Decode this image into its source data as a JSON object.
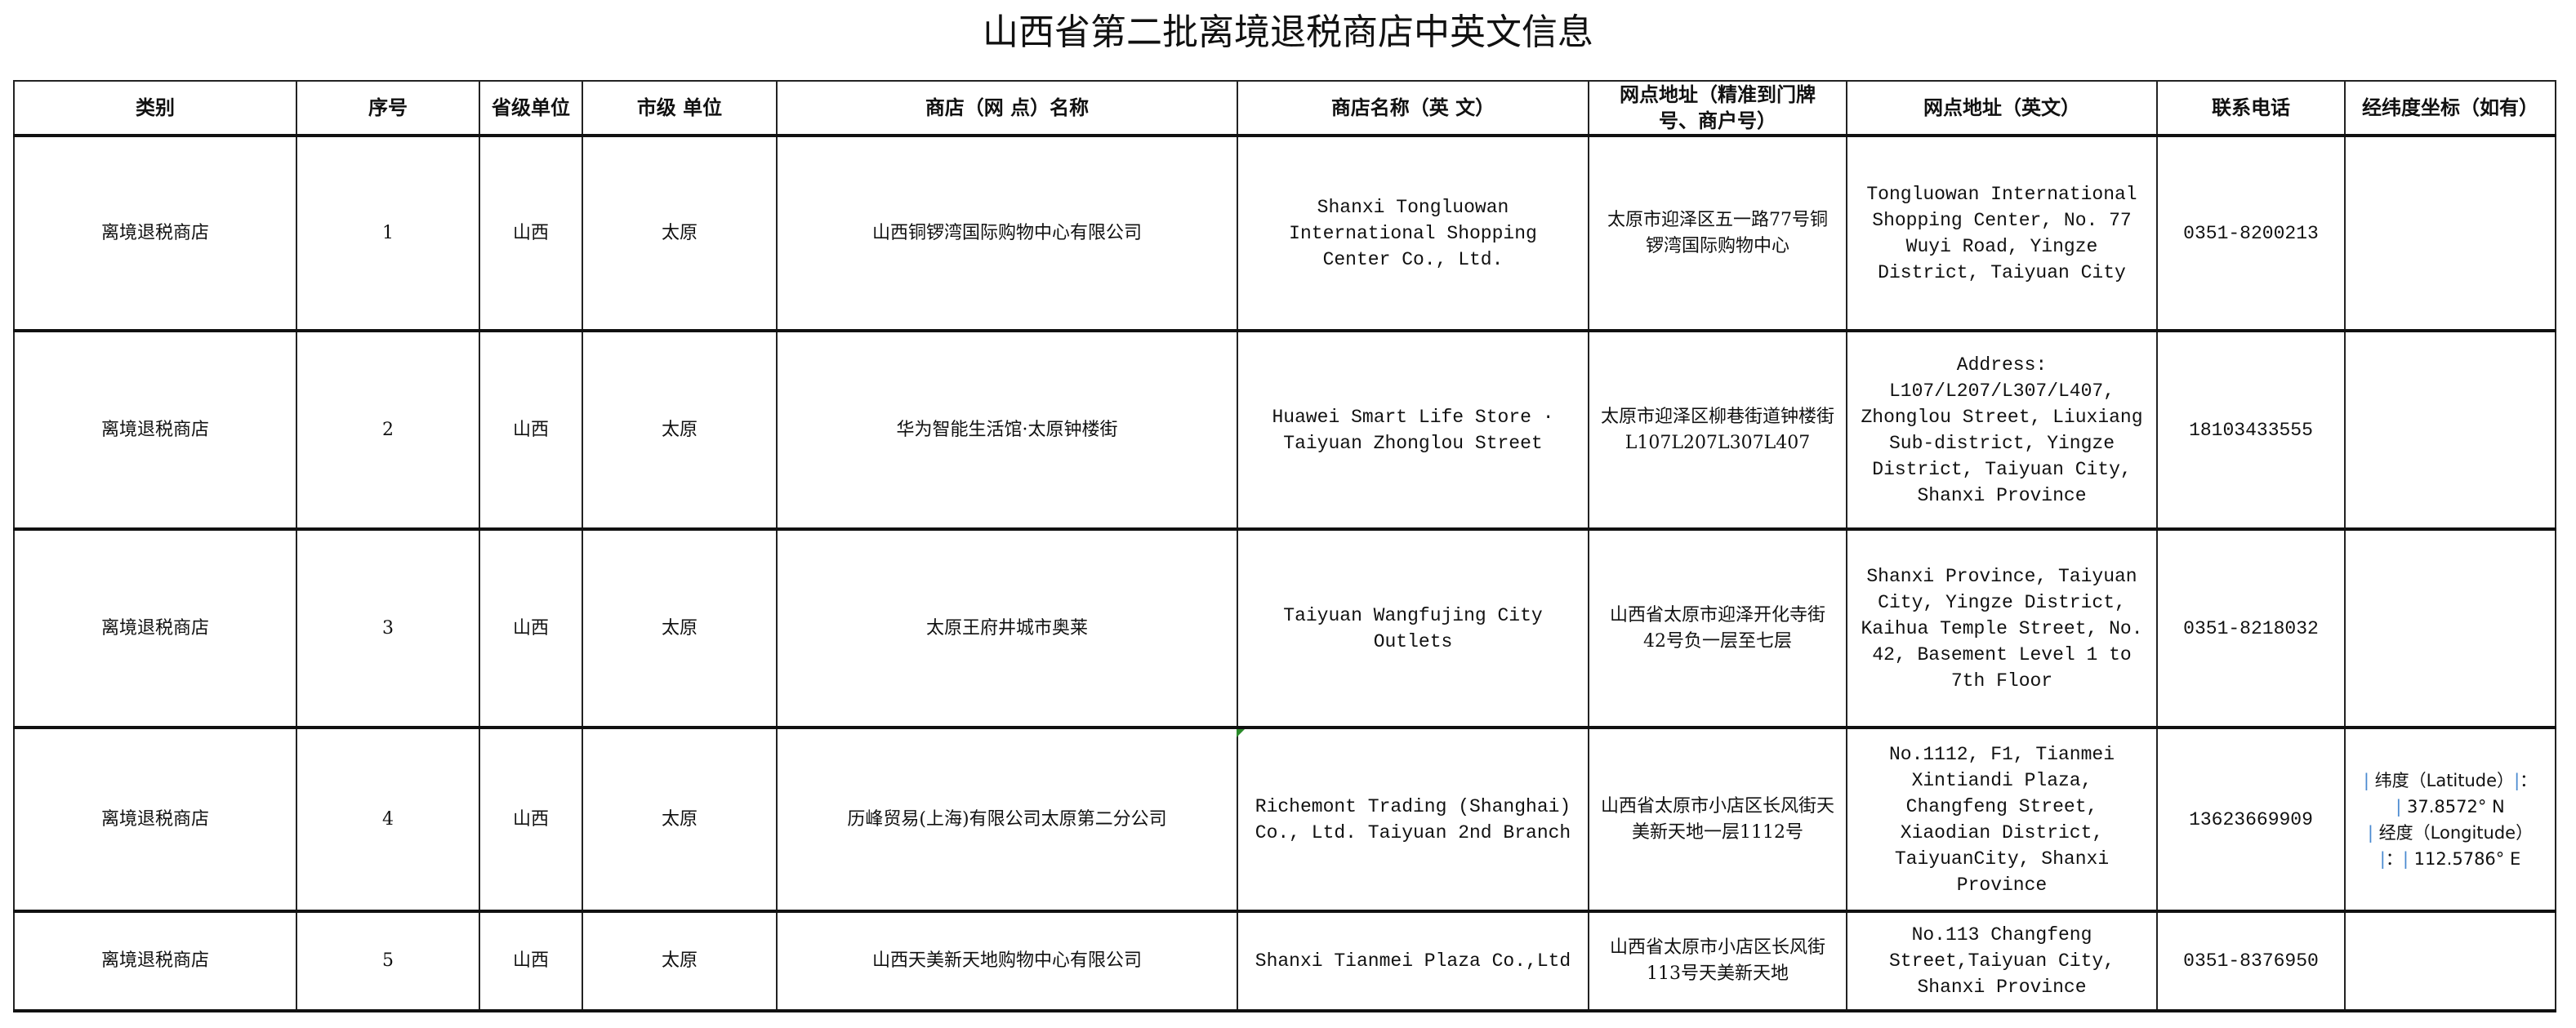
{
  "title": "山西省第二批离境退税商店中英文信息",
  "headers": [
    "类别",
    "序号",
    "省级单位",
    "市级 单位",
    "商店（网 点）名称",
    "商店名称（英 文）",
    "网点地址（精准到门牌号、商户号）",
    "网点地址（英文）",
    "联系电话",
    "经纬度坐标（如有）"
  ],
  "rows": [
    {
      "category": "离境退税商店",
      "no": "1",
      "province": "山西",
      "city": "太原",
      "name_cn": "山西铜锣湾国际购物中心有限公司",
      "name_en": "Shanxi Tongluowan International Shopping Center Co., Ltd.",
      "addr_cn": "太原市迎泽区五一路77号铜锣湾国际购物中心",
      "addr_en": "Tongluowan International Shopping Center, No. 77 Wuyi Road, Yingze District, Taiyuan City",
      "phone": "0351-8200213",
      "coord": ""
    },
    {
      "category": "离境退税商店",
      "no": "2",
      "province": "山西",
      "city": "太原",
      "name_cn": "华为智能生活馆·太原钟楼街",
      "name_en": "Huawei Smart Life Store · Taiyuan Zhonglou Street",
      "addr_cn": "太原市迎泽区柳巷街道钟楼街L107L207L307L407",
      "addr_en": "Address: L107/L207/L307/L407, Zhonglou Street, Liuxiang Sub-district, Yingze District, Taiyuan City, Shanxi Province",
      "phone": "18103433555",
      "coord": ""
    },
    {
      "category": "离境退税商店",
      "no": "3",
      "province": "山西",
      "city": "太原",
      "name_cn": "太原王府井城市奥莱",
      "name_en": "Taiyuan Wangfujing City Outlets",
      "addr_cn": "山西省太原市迎泽开化寺街42号负一层至七层",
      "addr_en": "Shanxi Province, Taiyuan City, Yingze District, Kaihua Temple Street, No. 42, Basement Level 1 to 7th Floor",
      "phone": "0351-8218032",
      "coord": ""
    },
    {
      "category": "离境退税商店",
      "no": "4",
      "province": "山西",
      "city": "太原",
      "name_cn": "历峰贸易(上海)有限公司太原第二分公司",
      "name_en": "Richemont Trading (Shanghai) Co., Ltd. Taiyuan 2nd Branch",
      "addr_cn": "山西省太原市小店区长风街天美新天地一层1112号",
      "addr_en": "No.1112, F1, Tianmei Xintiandi Plaza, Changfeng Street, Xiaodian District, TaiyuanCity, Shanxi Province",
      "phone": "13623669909",
      "coord": "",
      "lat_label": "纬度（Latitude）",
      "lat": "37.8572° N",
      "lng_label": "经度（Longitude）",
      "lng": "112.5786° E"
    },
    {
      "category": "离境退税商店",
      "no": "5",
      "province": "山西",
      "city": "太原",
      "name_cn": "山西天美新天地购物中心有限公司",
      "name_en": "Shanxi Tianmei Plaza Co.,Ltd",
      "addr_cn": "山西省太原市小店区长风街113号天美新天地",
      "addr_en": "No.113 Changfeng Street,Taiyuan City, Shanxi Province",
      "phone": "0351-8376950",
      "coord": ""
    }
  ]
}
